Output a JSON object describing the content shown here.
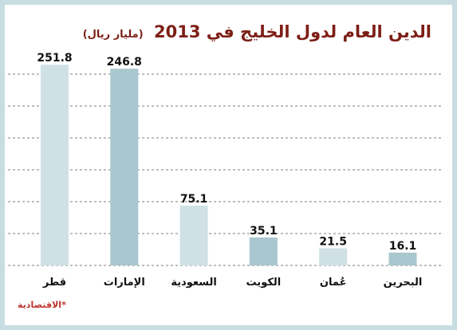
{
  "title": {
    "text": "الدين العام لدول الخليج في 2013",
    "unit": "(مليار ريال)"
  },
  "source": "*الاقتصادية",
  "colors": {
    "frame": "#c7dde1",
    "title": "#7d1f16",
    "bar_light": "#cfe1e4",
    "bar_dark": "#a9c7cf",
    "source": "#c0332d"
  },
  "chart_data": {
    "type": "bar",
    "title": "الدين العام لدول الخليج في 2013",
    "ylabel": "(مليار ريال)",
    "categories": [
      "قطر",
      "الإمارات",
      "السعودية",
      "الكويت",
      "عُمان",
      "البحرين"
    ],
    "values": [
      251.8,
      246.8,
      75.1,
      35.1,
      21.5,
      16.1
    ],
    "value_labels": [
      "251.8",
      "246.8",
      "75.1",
      "35.1",
      "21.5",
      "16.1"
    ],
    "bar_shades": [
      "light",
      "dark",
      "light",
      "dark",
      "light",
      "dark"
    ],
    "ylim": [
      0,
      260
    ],
    "grid": true,
    "legend": "none"
  }
}
